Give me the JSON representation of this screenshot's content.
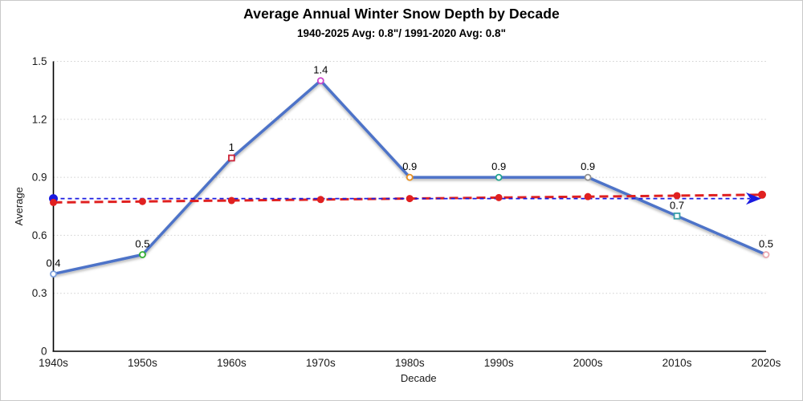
{
  "window": {
    "background": "#ffffff",
    "border_color": "#c9c9c9"
  },
  "chart_data": {
    "type": "line",
    "title": "Average Annual Winter Snow Depth by Decade",
    "subtitle": "1940-2025 Avg: 0.8\"/ 1991-2020 Avg: 0.8\"",
    "xlabel": "Decade",
    "ylabel": "Average",
    "categories": [
      "1940s",
      "1950s",
      "1960s",
      "1970s",
      "1980s",
      "1990s",
      "2000s",
      "2010s",
      "2020s"
    ],
    "ylim": [
      0,
      1.5
    ],
    "yticks": [
      0,
      0.3,
      0.6,
      0.9,
      1.2,
      1.5
    ],
    "ytick_labels": [
      "0",
      "0.3",
      "0.6",
      "0.9",
      "1.2",
      "1.5"
    ],
    "grid": "horizontal-dotted",
    "grid_color": "#cfcfcf",
    "axis_color": "#000000",
    "text_color": "#1a1a1a",
    "series": [
      {
        "name": "snow-depth-by-decade",
        "kind": "line",
        "color": "#4e73c8",
        "line_width": 3.5,
        "values": [
          0.4,
          0.5,
          1,
          1.4,
          0.9,
          0.9,
          0.9,
          0.7,
          0.5
        ],
        "point_labels": [
          "0.4",
          "0.5",
          "1",
          "1.4",
          "0.9",
          "0.9",
          "0.9",
          "0.7",
          "0.5"
        ],
        "markers": [
          {
            "shape": "circle",
            "color": "#7da0dc"
          },
          {
            "shape": "circle",
            "color": "#33b033"
          },
          {
            "shape": "square",
            "color": "#cc2236"
          },
          {
            "shape": "circle",
            "color": "#cc44cc"
          },
          {
            "shape": "circle",
            "color": "#e89020"
          },
          {
            "shape": "circle",
            "color": "#22a28e"
          },
          {
            "shape": "circle",
            "color": "#909090"
          },
          {
            "shape": "square",
            "color": "#3aa0a8"
          },
          {
            "shape": "circle",
            "color": "#eaa8b0"
          }
        ]
      },
      {
        "name": "trend-line-1940-2025",
        "kind": "trend-dashed",
        "color": "#e02020",
        "line_width": 3,
        "dash": [
          11,
          6
        ],
        "start_value": 0.77,
        "end_value": 0.81,
        "point_color": "#e02020",
        "point_radius": 4.5
      },
      {
        "name": "average-reference-line",
        "kind": "reference-dashed-arrow",
        "color": "#1a1ae0",
        "line_width": 1.8,
        "dash": [
          5,
          4
        ],
        "value": 0.79,
        "start_dot": true,
        "end_arrow": true
      }
    ]
  }
}
